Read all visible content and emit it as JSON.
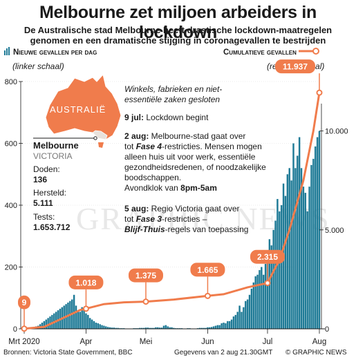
{
  "title": "Melbourne zet miljoen arbeiders in lockdown",
  "subtitle_line1": "De Australische stad Melbourne heeft drastische lockdown-maatregelen",
  "subtitle_line2": "genomen en een dramatische stijging in coronagevallen te bestrijden",
  "legend": {
    "left_label": "Nieuwe gevallen per dag",
    "left_note": "(linker schaal)",
    "right_label": "Cumulatieve gevallen",
    "right_note": "(rechter schaal)"
  },
  "map": {
    "label": "AUSTRALIË"
  },
  "stats": {
    "city": "Melbourne",
    "state": "VICTORIA",
    "deaths_label": "Doden:",
    "deaths_value": "136",
    "recovered_label": "Hersteld:",
    "recovered_value": "5.111",
    "tests_label": "Tests:",
    "tests_value": "1.653.712"
  },
  "annotations": {
    "italic_1": "Winkels, fabrieken en niet-",
    "italic_2": "essentiële zaken gesloten",
    "jul9_date": "9 jul:",
    "jul9_text": " Lockdown begint",
    "aug2_date": "2 aug:",
    "aug2_l1": " Melbourne-stad gaat over",
    "aug2_l2a": "tot ",
    "aug2_l2b": "Fase 4",
    "aug2_l2c": "-restricties. Mensen mogen",
    "aug2_l3": "alleen huis uit voor werk, essentiële",
    "aug2_l4": "gezondheidsredenen, of noodzakelijke",
    "aug2_l5": "boodschappen.",
    "aug2_l6a": "Avondklok van ",
    "aug2_l6b": "8pm-5am",
    "aug5_date": "5 aug:",
    "aug5_l1": " Regio Victoria gaat over",
    "aug5_l2a": "tot ",
    "aug5_l2b": "Fase 3",
    "aug5_l2c": "-restricties –",
    "aug5_l3a": "Blijf-Thuis",
    "aug5_l3b": "-regels van toepassing"
  },
  "footer": {
    "source": "Bronnen: Victoria State Government, BBC",
    "date": "Gegevens van 2 aug 21.30GMT",
    "credit": "© GRAPHIC NEWS"
  },
  "watermark": "GRAPHIC NEWS",
  "colors": {
    "bars": "#1e7a96",
    "line": "#f07c4c",
    "text": "#1a1a1a"
  },
  "chart_data": {
    "type": "bar",
    "x_axis": {
      "ticks": [
        "Mrt 2020",
        "Apr",
        "Mei",
        "Jun",
        "Jul",
        "Aug"
      ]
    },
    "y_left": {
      "ticks": [
        "0",
        "200",
        "400",
        "600",
        "800"
      ],
      "range": [
        0,
        800
      ]
    },
    "y_right": {
      "ticks": [
        "0",
        "5.000",
        "10.000"
      ],
      "range": [
        0,
        12500
      ]
    },
    "series": [
      {
        "name": "Nieuwe gevallen per dag",
        "kind": "bar",
        "axis": "left",
        "values": [
          0,
          1,
          1,
          2,
          3,
          5,
          8,
          10,
          15,
          20,
          25,
          30,
          35,
          40,
          45,
          50,
          55,
          60,
          65,
          70,
          75,
          80,
          85,
          90,
          95,
          110,
          75,
          60,
          55,
          70,
          65,
          50,
          45,
          35,
          30,
          25,
          20,
          18,
          15,
          12,
          10,
          8,
          6,
          5,
          4,
          4,
          3,
          3,
          2,
          2,
          2,
          1,
          1,
          1,
          1,
          2,
          2,
          2,
          3,
          3,
          3,
          4,
          4,
          3,
          3,
          3,
          5,
          5,
          4,
          4,
          10,
          12,
          8,
          5,
          5,
          3,
          2,
          2,
          2,
          2,
          1,
          1,
          2,
          2,
          1,
          1,
          1,
          2,
          3,
          3,
          3,
          3,
          5,
          5,
          6,
          8,
          10,
          12,
          12,
          18,
          20,
          18,
          25,
          25,
          30,
          40,
          45,
          55,
          75,
          55,
          70,
          90,
          95,
          110,
          130,
          150,
          170,
          175,
          190,
          200,
          175,
          210,
          250,
          290,
          270,
          320,
          350,
          420,
          380,
          400,
          470,
          430,
          500,
          520,
          480,
          600,
          520,
          560,
          620,
          520,
          460,
          440,
          380,
          460,
          530,
          550,
          590,
          620,
          640
        ]
      },
      {
        "name": "Cumulatieve gevallen",
        "kind": "line",
        "axis": "right",
        "points": [
          {
            "x": 0,
            "y": 9
          },
          {
            "x": 10,
            "y": 100
          },
          {
            "x": 20,
            "y": 574
          },
          {
            "x": 28,
            "y": 950
          },
          {
            "x": 31,
            "y": 1018
          },
          {
            "x": 40,
            "y": 1250
          },
          {
            "x": 50,
            "y": 1340
          },
          {
            "x": 61,
            "y": 1375
          },
          {
            "x": 75,
            "y": 1480
          },
          {
            "x": 92,
            "y": 1665
          },
          {
            "x": 100,
            "y": 1750
          },
          {
            "x": 112,
            "y": 2100
          },
          {
            "x": 122,
            "y": 2315
          },
          {
            "x": 128,
            "y": 3500
          },
          {
            "x": 133,
            "y": 5000
          },
          {
            "x": 140,
            "y": 7500
          },
          {
            "x": 145,
            "y": 10000
          },
          {
            "x": 148,
            "y": 11937
          }
        ]
      }
    ],
    "callouts": [
      {
        "x": 0,
        "value": "9"
      },
      {
        "x": 31,
        "value": "1.018"
      },
      {
        "x": 61,
        "value": "1.375"
      },
      {
        "x": 92,
        "value": "1.665"
      },
      {
        "x": 122,
        "value": "2.315"
      },
      {
        "x": 148,
        "value": "11.937"
      }
    ]
  }
}
